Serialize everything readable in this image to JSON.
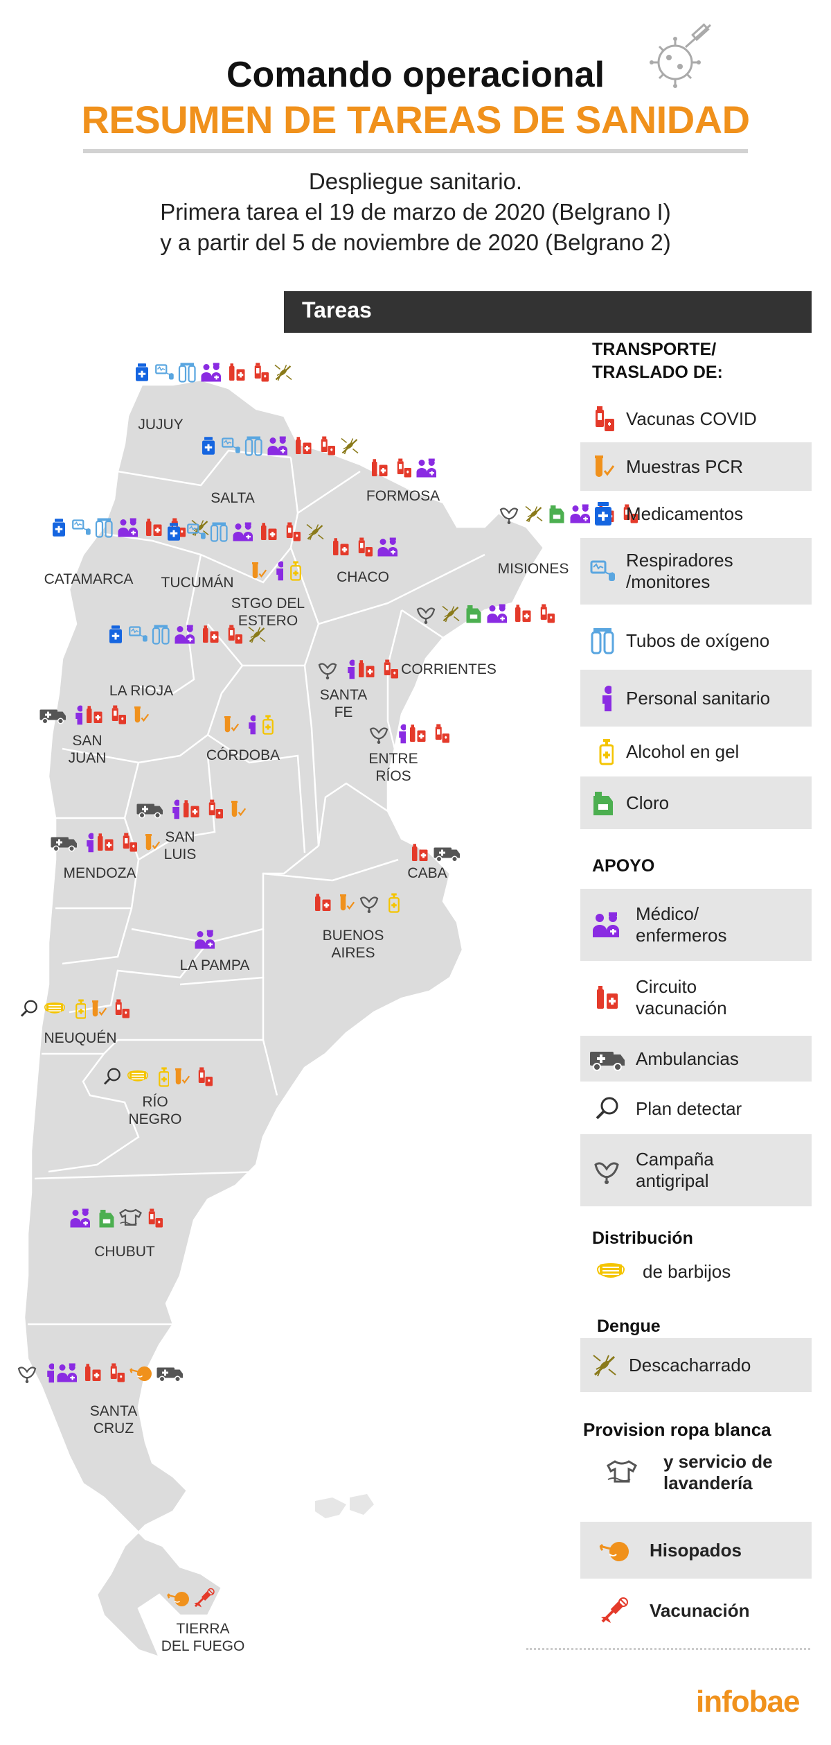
{
  "header": {
    "title": "Comando operacional",
    "subtitle": "RESUMEN DE TAREAS DE SANIDAD",
    "lines": [
      "Despliegue sanitario.",
      "Primera tarea el 19 de marzo de 2020 (Belgrano I)",
      "y a partir del 5 de noviembre de 2020 (Belgrano 2)"
    ]
  },
  "tareas_label": "Tareas",
  "colors": {
    "orange": "#f0911c",
    "red": "#e43a2a",
    "purple": "#8a2be2",
    "blue": "#1565e0",
    "lightblue": "#5aa6e0",
    "yellow": "#f4c400",
    "green": "#4caf50",
    "gray": "#555555",
    "olive": "#8a7a1a",
    "map": "#dcdcdc"
  },
  "provinces": [
    {
      "name": "JUJUY",
      "icons": [
        "blue-meds",
        "respirator",
        "tubes",
        "medic",
        "circuito",
        "vaccine",
        "dengue"
      ]
    },
    {
      "name": "SALTA",
      "icons": [
        "blue-meds",
        "respirator",
        "tubes",
        "medic",
        "circuito",
        "vaccine",
        "dengue"
      ]
    },
    {
      "name": "FORMOSA",
      "icons": [
        "circuito",
        "vaccine",
        "medic"
      ]
    },
    {
      "name": "MISIONES",
      "icons": [
        "antigripal",
        "dengue",
        "cloro",
        "medic",
        "circuito",
        "vaccine"
      ]
    },
    {
      "name": "CATAMARCA",
      "icons": [
        "blue-meds",
        "respirator",
        "tubes",
        "medic",
        "circuito",
        "vaccine",
        "dengue"
      ]
    },
    {
      "name": "TUCUMÁN",
      "icons": [
        "blue-meds",
        "respirator",
        "tubes",
        "medic",
        "circuito",
        "vaccine",
        "dengue"
      ]
    },
    {
      "name": "CHACO",
      "icons": [
        "circuito",
        "vaccine",
        "medic"
      ]
    },
    {
      "name": "STGO DEL\nESTERO",
      "icons": [
        "pcr",
        "personal",
        "alcohol"
      ]
    },
    {
      "name": "CORRIENTES",
      "icons": [
        "antigripal",
        "dengue",
        "cloro",
        "medic",
        "circuito",
        "vaccine"
      ]
    },
    {
      "name": "LA RIOJA",
      "icons": [
        "blue-meds",
        "respirator",
        "tubes",
        "medic",
        "circuito",
        "vaccine",
        "dengue"
      ]
    },
    {
      "name": "SANTA\nFE",
      "icons": [
        "antigripal",
        "personal",
        "circuito",
        "vaccine"
      ]
    },
    {
      "name": "SAN\nJUAN",
      "icons": [
        "ambulance",
        "personal",
        "circuito",
        "vaccine",
        "pcr"
      ]
    },
    {
      "name": "CÓRDOBA",
      "icons": [
        "pcr",
        "personal",
        "alcohol"
      ]
    },
    {
      "name": "ENTRE\nRÍOS",
      "icons": [
        "antigripal",
        "personal",
        "circuito",
        "vaccine"
      ]
    },
    {
      "name": "SAN\nLUIS",
      "icons": [
        "ambulance",
        "personal",
        "circuito",
        "vaccine",
        "pcr"
      ]
    },
    {
      "name": "MENDOZA",
      "icons": [
        "ambulance",
        "personal",
        "circuito",
        "vaccine",
        "pcr"
      ]
    },
    {
      "name": "CABA",
      "icons": [
        "circuito",
        "ambulance"
      ]
    },
    {
      "name": "BUENOS\nAIRES",
      "icons": [
        "circuito",
        "pcr",
        "antigripal",
        "alcohol"
      ]
    },
    {
      "name": "LA PAMPA",
      "icons": [
        "medic"
      ]
    },
    {
      "name": "NEUQUÉN",
      "icons": [
        "detectar",
        "barbijo",
        "alcohol",
        "pcr",
        "vaccine"
      ]
    },
    {
      "name": "RÍO\nNEGRO",
      "icons": [
        "detectar",
        "barbijo",
        "alcohol",
        "pcr",
        "vaccine"
      ]
    },
    {
      "name": "CHUBUT",
      "icons": [
        "medic",
        "cloro",
        "ropa",
        "vaccine"
      ]
    },
    {
      "name": "SANTA\nCRUZ",
      "icons": [
        "antigripal",
        "personal",
        "medic",
        "circuito",
        "vaccine",
        "hisopado",
        "ambulance"
      ]
    },
    {
      "name": "TIERRA\nDEL FUEGO",
      "icons": [
        "hisopado",
        "vacunacion"
      ]
    }
  ],
  "legend": {
    "transporte_title": "TRANSPORTE/\nTRASLADO DE:",
    "transporte": [
      {
        "icon": "vaccine",
        "label": "Vacunas COVID"
      },
      {
        "icon": "pcr",
        "label": "Muestras PCR"
      },
      {
        "icon": "blue-meds",
        "label": "Medicamentos"
      },
      {
        "icon": "respirator",
        "label": "Respiradores\n/monitores"
      },
      {
        "icon": "tubes",
        "label": "Tubos de oxígeno"
      },
      {
        "icon": "personal",
        "label": "Personal sanitario"
      },
      {
        "icon": "alcohol",
        "label": "Alcohol en gel"
      },
      {
        "icon": "cloro",
        "label": "Cloro"
      }
    ],
    "apoyo_title": "APOYO",
    "apoyo": [
      {
        "icon": "medic",
        "label": "Médico/\nenfermeros"
      },
      {
        "icon": "circuito",
        "label": "Circuito\nvacunación"
      },
      {
        "icon": "ambulance",
        "label": "Ambulancias"
      },
      {
        "icon": "detectar",
        "label": "Plan detectar"
      },
      {
        "icon": "antigripal",
        "label": "Campaña\nantigripal"
      }
    ],
    "distribucion_title": "Distribución",
    "distribucion_label": "de barbijos",
    "dengue_title": "Dengue",
    "dengue_label": "Descacharrado",
    "ropa_title": "Provision ropa blanca",
    "ropa_label": "y servicio de\nlavandería",
    "hisopados_label": "Hisopados",
    "vacunacion_label": "Vacunación"
  },
  "logo": "infobae"
}
